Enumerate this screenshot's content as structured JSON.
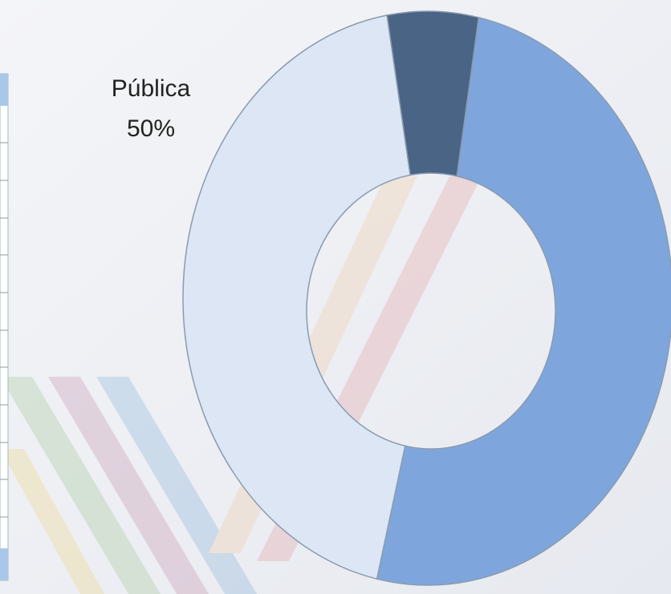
{
  "chart_data": {
    "type": "donut",
    "categories": [
      "Pública",
      null,
      null
    ],
    "values": [
      50,
      44,
      6
    ],
    "value_labels": [
      "50%",
      null,
      null
    ],
    "colors": [
      "#7ea6dc",
      "#dce6f4",
      "#4a6485"
    ],
    "start_angle": 12
  }
}
